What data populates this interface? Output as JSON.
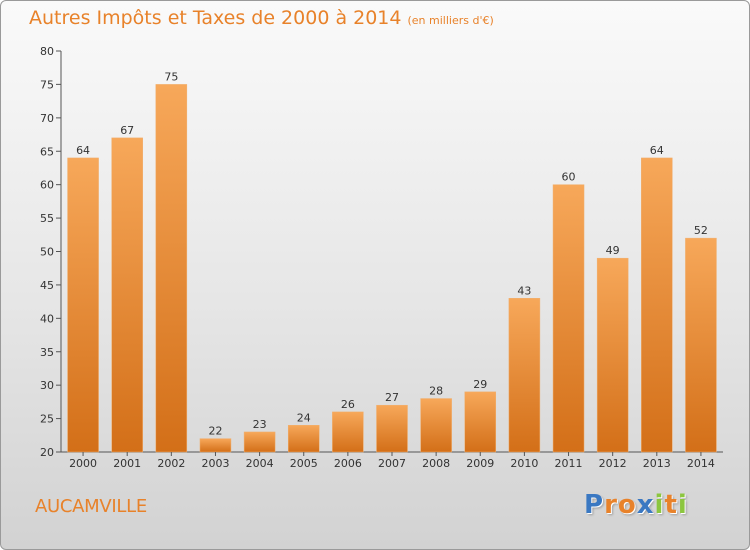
{
  "header": {
    "title": "Autres Impôts et Taxes de 2000 à 2014",
    "unit": "(en milliers d'€)"
  },
  "footer": {
    "town": "AUCAMVILLE",
    "logo": [
      "P",
      "r",
      "o",
      "x",
      "i",
      "t",
      "i"
    ]
  },
  "colors": {
    "bar_top": "#f7a85a",
    "bar_bottom": "#d36f18",
    "accent": "#e8822a",
    "logo": [
      "#3a78c2",
      "#e8822a",
      "#e8822a",
      "#3a78c2",
      "#8cc63f",
      "#e8822a",
      "#8cc63f"
    ]
  },
  "chart_data": {
    "type": "bar",
    "title": "Autres Impôts et Taxes de 2000 à 2014",
    "subtitle": "(en milliers d'€)",
    "xlabel": "",
    "ylabel": "",
    "categories": [
      "2000",
      "2001",
      "2002",
      "2003",
      "2004",
      "2005",
      "2006",
      "2007",
      "2008",
      "2009",
      "2010",
      "2011",
      "2012",
      "2013",
      "2014"
    ],
    "values": [
      64,
      67,
      75,
      22,
      23,
      24,
      26,
      27,
      28,
      29,
      43,
      60,
      49,
      64,
      52
    ],
    "ylim": [
      20,
      80
    ],
    "yticks": [
      20,
      25,
      30,
      35,
      40,
      45,
      50,
      55,
      60,
      65,
      70,
      75,
      80
    ],
    "grid": false,
    "legend": "none"
  }
}
